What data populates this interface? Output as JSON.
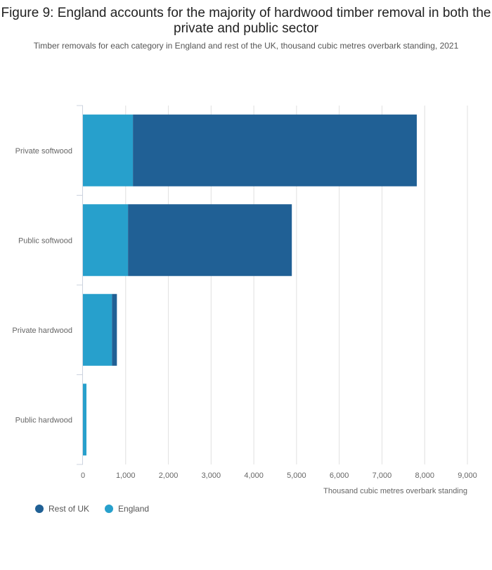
{
  "chart_data": {
    "type": "bar",
    "orientation": "horizontal",
    "stacked": true,
    "title": "Figure 9: England accounts for the majority of hardwood timber removal in both the private and public sector",
    "subtitle": "Timber removals for each category in England and rest of the UK, thousand cubic metres overbark standing, 2021",
    "xlabel": "Thousand cubic metres overbark standing",
    "ylabel": "",
    "xlim": [
      0,
      9000
    ],
    "xticks": [
      "0",
      "1,000",
      "2,000",
      "3,000",
      "4,000",
      "5,000",
      "6,000",
      "7,000",
      "8,000",
      "9,000"
    ],
    "grid": true,
    "legend_placement": "bottom-left",
    "categories": [
      "Private softwood",
      "Public softwood",
      "Private hardwood",
      "Public hardwood"
    ],
    "series": [
      {
        "name": "England",
        "color": "#27a0cc",
        "values": [
          1170,
          1055,
          680,
          82
        ]
      },
      {
        "name": "Rest of UK",
        "color": "#206095",
        "values": [
          6645,
          3835,
          115,
          0
        ]
      }
    ],
    "legend_order": [
      "Rest of UK",
      "England"
    ]
  }
}
